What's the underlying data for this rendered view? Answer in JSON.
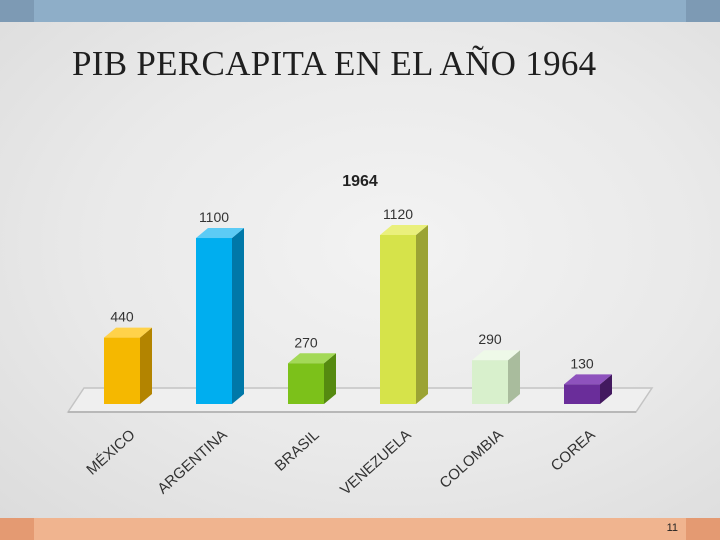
{
  "slide": {
    "title": "PIB PERCAPITA EN EL AÑO 1964",
    "page_number": "11"
  },
  "chart_data": {
    "type": "bar",
    "title": "1964",
    "xlabel": "",
    "ylabel": "",
    "categories": [
      "MÉXICO",
      "ARGENTINA",
      "BRASIL",
      "VENEZUELA",
      "COLOMBIA",
      "COREA"
    ],
    "values": [
      440,
      1100,
      270,
      1120,
      290,
      130
    ],
    "ylim": [
      0,
      1200
    ],
    "grid": false,
    "legend": "none",
    "data_labels": true,
    "bar_colors": [
      "#f5b800",
      "#00aeef",
      "#7cc11a",
      "#d6e34a",
      "#d8f0cc",
      "#6a2d9a"
    ],
    "bar_side_colors": [
      "#b38400",
      "#0078a8",
      "#558a10",
      "#9ba334",
      "#a9bc9d",
      "#43195f"
    ],
    "bar_top_colors": [
      "#ffd24a",
      "#5ccbf5",
      "#a3d957",
      "#eaf07c",
      "#eef9e8",
      "#8e52bd"
    ]
  }
}
